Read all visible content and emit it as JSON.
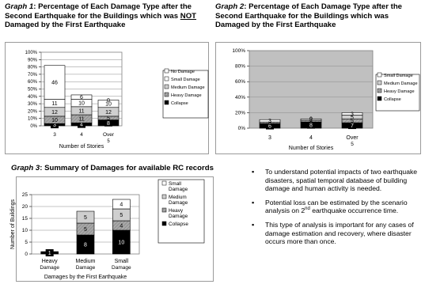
{
  "titles": {
    "g1_label": "Graph 1",
    "g1_text_a": ": Percentage of Each Damage Type after the Second Earthquake for the Buildings which was ",
    "g1_text_not": "NOT",
    "g1_text_b": " Damaged by the First Earthquake",
    "g2_label": "Graph 2",
    "g2_text": ": Percentage of Each Damage Type after the Second Earthquake for the Buildings which was Damaged by the First Earthquake",
    "g3_label": "Graph 3",
    "g3_text": ": Summary of Damages for available RC records"
  },
  "bullets": {
    "b1": "To understand potential impacts of two earthquake disasters, spatial temporal database of building damage and human activity is needed.",
    "b2_a": "Potential loss can be estimated by the scenario analysis on 2",
    "b2_sup": "nd",
    "b2_b": " earthquake occurrence time.",
    "b3": "This type of analysis is important for any cases of damage estimation and recovery, where disaster occurs more than once."
  },
  "colors": {
    "no_damage": "#ffffff",
    "small_damage": "#ffffff",
    "medium_damage": "#cfcfcf",
    "heavy_damage": "#a8a8a8",
    "collapse": "#000000",
    "plot_bg": "#c0c0c0"
  },
  "chart_data": [
    {
      "id": "graph1",
      "type": "bar",
      "stacked": true,
      "categories": [
        "3",
        "4",
        "Over 5"
      ],
      "xlabel": "Number of Stories",
      "ylabel": "",
      "ylim": [
        0,
        100
      ],
      "yticks": [
        "0%",
        "10%",
        "20%",
        "30%",
        "40%",
        "50%",
        "60%",
        "70%",
        "80%",
        "90%",
        "100%"
      ],
      "grid": true,
      "legend": "right",
      "series": [
        {
          "name": "Collapse",
          "color_key": "collapse",
          "values": [
            3,
            4,
            8
          ]
        },
        {
          "name": "Heavy Damage",
          "color_key": "heavy_damage",
          "values": [
            10,
            11,
            5
          ]
        },
        {
          "name": "Medium Damage",
          "color_key": "medium_damage",
          "values": [
            12,
            11,
            12
          ]
        },
        {
          "name": "Small Damage",
          "color_key": "small_damage",
          "values": [
            11,
            10,
            10
          ]
        },
        {
          "name": "No Damage",
          "color_key": "no_damage",
          "values": [
            46,
            6,
            0
          ]
        }
      ]
    },
    {
      "id": "graph2",
      "type": "bar",
      "stacked": true,
      "categories": [
        "3",
        "4",
        "Over 5"
      ],
      "xlabel": "Number of Stories",
      "ylabel": "",
      "ylim": [
        0,
        100
      ],
      "yticks": [
        "0%",
        "20%",
        "40%",
        "60%",
        "80%",
        "100%"
      ],
      "grid": true,
      "legend": "right",
      "series": [
        {
          "name": "Collapse",
          "color_key": "collapse",
          "values": [
            6,
            8,
            7
          ]
        },
        {
          "name": "Heavy Damage",
          "color_key": "heavy_damage",
          "values": [
            2,
            2,
            5
          ]
        },
        {
          "name": "Medium Damage",
          "color_key": "medium_damage",
          "values": [
            0,
            2,
            5
          ]
        },
        {
          "name": "Small Damage",
          "color_key": "small_damage",
          "values": [
            3,
            0,
            3
          ]
        }
      ]
    },
    {
      "id": "graph3",
      "type": "bar",
      "stacked": true,
      "categories": [
        "Heavy Damage",
        "Medium Damage",
        "Small Damage"
      ],
      "xlabel": "Damages by the First Earthquake",
      "ylabel": "Number of Buildings",
      "ylim": [
        0,
        25
      ],
      "yticks": [
        "0",
        "5",
        "10",
        "15",
        "20",
        "25"
      ],
      "grid": true,
      "legend": "right",
      "series": [
        {
          "name": "Collapse",
          "color_key": "collapse",
          "values": [
            1,
            8,
            10
          ]
        },
        {
          "name": "Heavy Damage",
          "color_key": "heavy_damage",
          "values": [
            0,
            5,
            4
          ]
        },
        {
          "name": "Medium Damage",
          "color_key": "medium_damage",
          "values": [
            0,
            5,
            5
          ]
        },
        {
          "name": "Small Damage",
          "color_key": "small_damage",
          "values": [
            0,
            0,
            4
          ]
        }
      ]
    }
  ]
}
